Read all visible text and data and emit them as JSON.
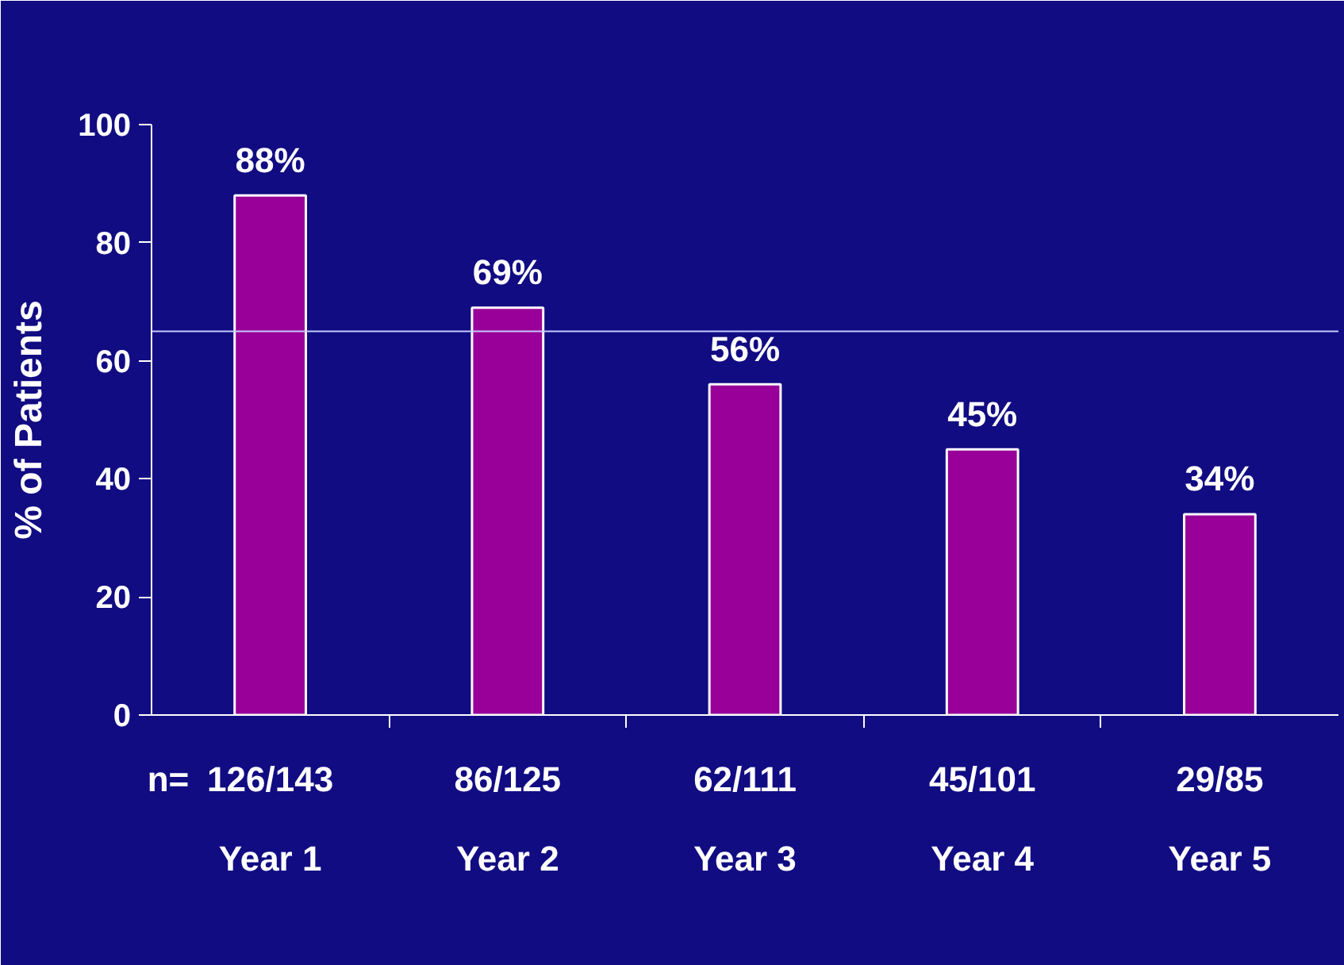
{
  "chart_data": {
    "type": "bar",
    "ylabel": "% of Patients",
    "categories": [
      "Year 1",
      "Year 2",
      "Year 3",
      "Year 4",
      "Year 5"
    ],
    "values": [
      88,
      69,
      56,
      45,
      34
    ],
    "color": "#990099",
    "data_labels": true,
    "value_labels": [
      "88%",
      "69%",
      "56%",
      "45%",
      "34%"
    ],
    "ylim": [
      0,
      100
    ],
    "yticks": [
      0,
      20,
      40,
      60,
      80,
      100
    ],
    "grid": false,
    "ref_lines": [
      {
        "axis": "y",
        "value": 65,
        "label": null,
        "color": "#c8c8ff"
      }
    ],
    "annotations": [
      "n=",
      "126/143",
      "86/125",
      "62/111",
      "45/101",
      "29/85"
    ]
  }
}
